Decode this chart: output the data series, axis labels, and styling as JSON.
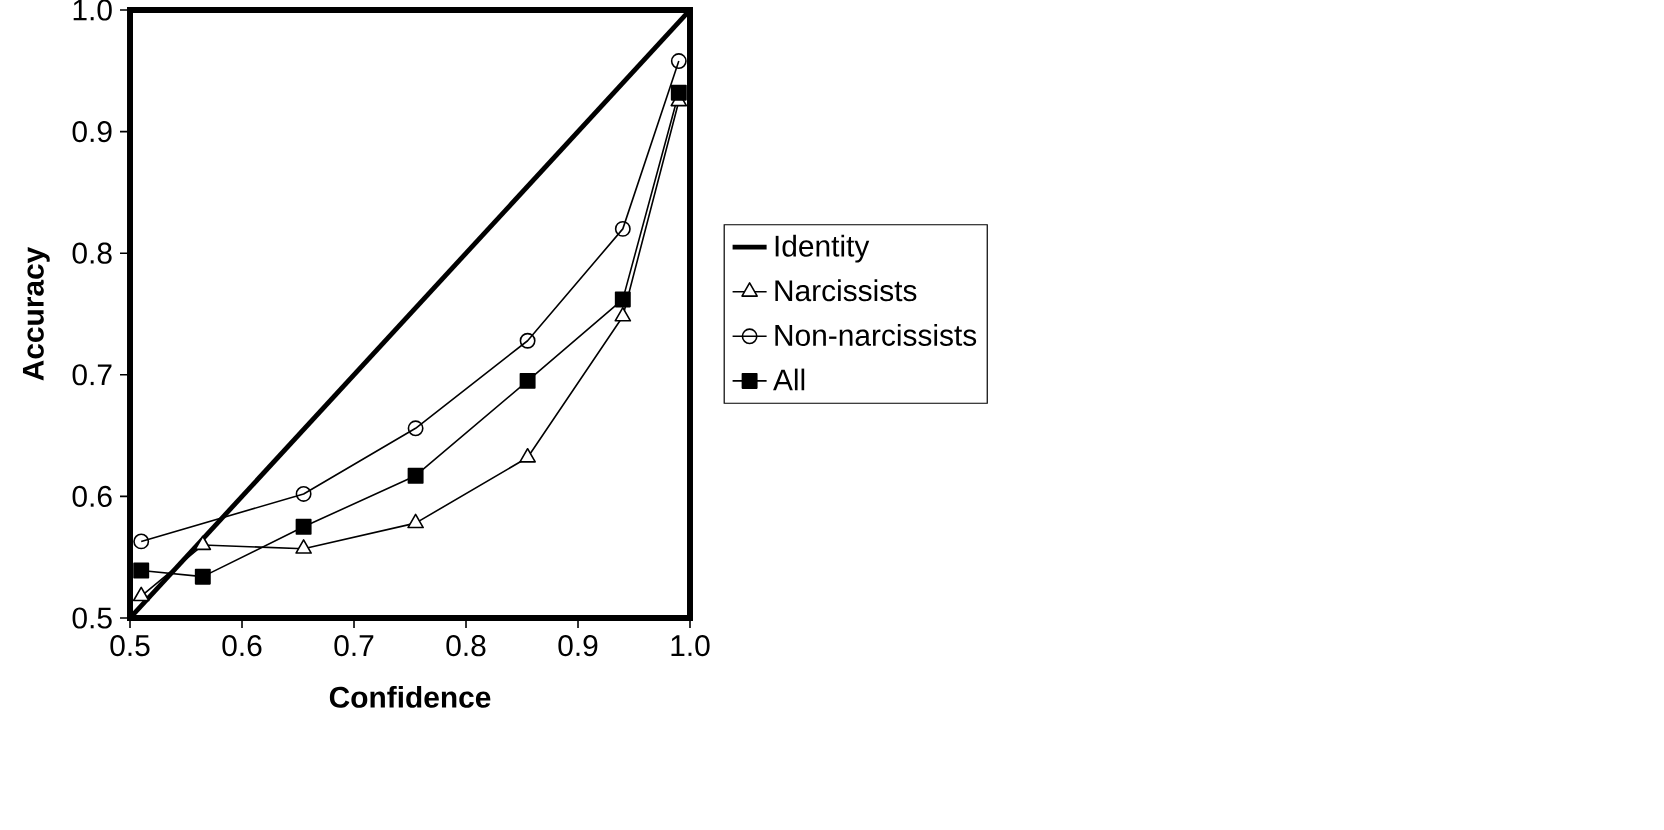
{
  "chart_data": {
    "type": "line",
    "xlabel": "Confidence",
    "ylabel": "Accuracy",
    "xlim": [
      0.5,
      1.0
    ],
    "ylim": [
      0.5,
      1.0
    ],
    "xticks": [
      {
        "value": 0.5,
        "label": "0.5"
      },
      {
        "value": 0.6,
        "label": "0.6"
      },
      {
        "value": 0.7,
        "label": "0.7"
      },
      {
        "value": 0.8,
        "label": "0.8"
      },
      {
        "value": 0.9,
        "label": "0.9"
      },
      {
        "value": 1.0,
        "label": "1.0"
      }
    ],
    "yticks": [
      {
        "value": 0.5,
        "label": "0.5"
      },
      {
        "value": 0.6,
        "label": "0.6"
      },
      {
        "value": 0.7,
        "label": "0.7"
      },
      {
        "value": 0.8,
        "label": "0.8"
      },
      {
        "value": 0.9,
        "label": "0.9"
      },
      {
        "value": 1.0,
        "label": "1.0"
      }
    ],
    "grid": false,
    "legend": "right",
    "series": [
      {
        "name": "Identity",
        "color": "#000000",
        "marker": "none",
        "x": [
          0.5,
          1.0
        ],
        "values": [
          0.5,
          1.0
        ]
      },
      {
        "name": "Narcissists",
        "color": "#000000",
        "marker": "triangle",
        "x": [
          0.51,
          0.565,
          0.655,
          0.755,
          0.855,
          0.94,
          0.99
        ],
        "values": [
          0.518,
          0.56,
          0.557,
          0.578,
          0.632,
          0.748,
          0.925
        ]
      },
      {
        "name": "Non-narcissists",
        "color": "#000000",
        "marker": "circle",
        "x": [
          0.51,
          0.565,
          0.655,
          0.755,
          0.855,
          0.94,
          0.99
        ],
        "values": [
          0.563,
          null,
          0.602,
          0.656,
          0.728,
          0.82,
          0.958
        ]
      },
      {
        "name": "All",
        "color": "#000000",
        "marker": "square",
        "x": [
          0.51,
          0.565,
          0.655,
          0.755,
          0.855,
          0.94,
          0.99
        ],
        "values": [
          0.539,
          0.534,
          0.575,
          0.617,
          0.695,
          0.762,
          0.932
        ]
      }
    ]
  }
}
